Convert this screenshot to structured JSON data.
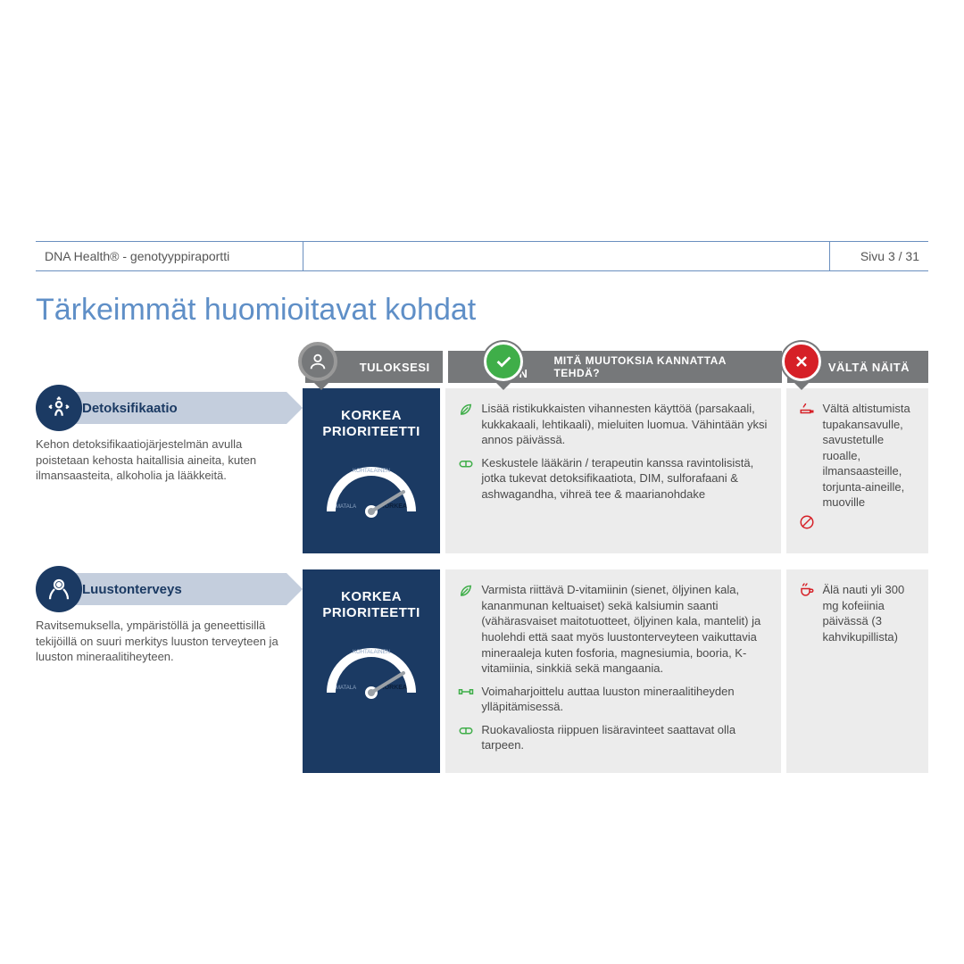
{
  "header": {
    "left": "DNA Health® - genotyyppiraportti",
    "page": "Sivu 3 / 31"
  },
  "title": "Tärkeimmät huomioitavat kohdat",
  "columns": {
    "results": "TULOKSESI",
    "do_left": "TEE NÄIN",
    "do_right": "MITÄ MUUTOKSIA KANNATTAA TEHDÄ?",
    "avoid": "VÄLTÄ NÄITÄ"
  },
  "gauge": {
    "low": "MATALA",
    "mid": "KOHTALAINEN",
    "high": "KORKEA",
    "track_color": "#ffffff",
    "needle_color": "#9aa0a6",
    "bg": "#1b3a63"
  },
  "rows": [
    {
      "icon": "person-arrows",
      "name": "Detoksifikaatio",
      "desc": "Kehon detoksifikaatiojärjestelmän avulla poistetaan kehosta haitallisia aineita, kuten ilmansaasteita, alkoholia ja lääkkeitä.",
      "priority": "KORKEA\nPRIORITEETTI",
      "do": [
        {
          "icon": "leaf",
          "text": "Lisää ristikukkaisten vihannesten käyttöä (parsakaali, kukkakaali, lehtikaali), mieluiten luomua. Vähintään yksi annos päivässä."
        },
        {
          "icon": "pill",
          "text": "Keskustele lääkärin / terapeutin kanssa ravintolisistä, jotka tukevat detoksifikaatiota, DIM, sulforafaani & ashwagandha, vihreä tee & maarianohdake"
        }
      ],
      "avoid": [
        {
          "icon": "smoke",
          "text": "Vältä altistumista tupakansavulle, savustetulle ruoalle, ilmansaasteille, torjunta-aineille, muoville"
        }
      ]
    },
    {
      "icon": "bone-joint",
      "name": "Luustonterveys",
      "desc": "Ravitsemuksella, ympäristöllä ja geneettisillä tekijöillä on suuri merkitys luuston terveyteen ja luuston mineraalitiheyteen.",
      "priority": "KORKEA\nPRIORITEETTI",
      "do": [
        {
          "icon": "leaf",
          "text": "Varmista riittävä D-vitamiinin (sienet, öljyinen kala, kananmunan keltuaiset) sekä kalsiumin saanti (vähärasvaiset maitotuotteet, öljyinen kala, mantelit) ja huolehdi että saat myös luustonterveyteen vaikuttavia mineraaleja kuten fosforia, magnesiumia, booria, K-vitamiinia, sinkkiä sekä mangaania."
        },
        {
          "icon": "dumbbell",
          "text": "Voimaharjoittelu auttaa luuston mineraalitiheyden ylläpitämisessä."
        },
        {
          "icon": "pill",
          "text": "Ruokavaliosta riippuen lisäravinteet saattavat olla tarpeen."
        }
      ],
      "avoid": [
        {
          "icon": "cup",
          "text": "Älä nauti yli 300 mg kofeiinia päivässä (3 kahvikupillista)"
        }
      ]
    }
  ],
  "colors": {
    "accent": "#5f8fc7",
    "navy": "#1b3a63",
    "ribbon": "#76787a",
    "green": "#3fae49",
    "red": "#d62027",
    "panel": "#ececec",
    "chevron": "#c4cedd"
  }
}
